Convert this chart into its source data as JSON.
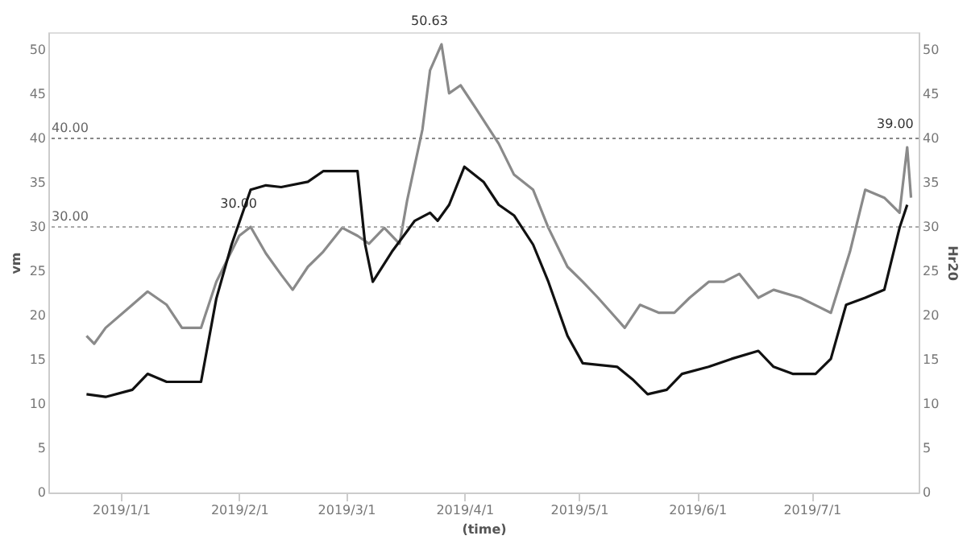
{
  "chart_data": {
    "type": "line",
    "xlabel": "(time)",
    "ylabel": "vm",
    "y2label": "Hr20",
    "xlim": [
      "2018-12-13",
      "2019-07-29"
    ],
    "xticks": [
      {
        "value": "2019-01-01",
        "label": "2019/1/1"
      },
      {
        "value": "2019-02-01",
        "label": "2019/2/1"
      },
      {
        "value": "2019-03-01",
        "label": "2019/3/1"
      },
      {
        "value": "2019-04-01",
        "label": "2019/4/1"
      },
      {
        "value": "2019-05-01",
        "label": "2019/5/1"
      },
      {
        "value": "2019-06-01",
        "label": "2019/6/1"
      },
      {
        "value": "2019-07-01",
        "label": "2019/7/1"
      }
    ],
    "ylim": [
      0,
      52
    ],
    "yticks": [
      0,
      5,
      10,
      15,
      20,
      25,
      30,
      35,
      40,
      45,
      50
    ],
    "y2lim": [
      0,
      52
    ],
    "y2ticks": [
      0,
      5,
      10,
      15,
      20,
      25,
      30,
      35,
      40,
      45,
      50
    ],
    "grid": false,
    "legend": false,
    "marker": "none",
    "line_style": "solid",
    "series": [
      {
        "color": "#8a8a8a",
        "x": [
          "2018-12-23",
          "2018-12-25",
          "2018-12-28",
          "2019-01-04",
          "2019-01-08",
          "2019-01-13",
          "2019-01-17",
          "2019-01-22",
          "2019-01-26",
          "2019-02-01",
          "2019-02-04",
          "2019-02-08",
          "2019-02-12",
          "2019-02-15",
          "2019-02-19",
          "2019-02-23",
          "2019-02-28",
          "2019-03-04",
          "2019-03-07",
          "2019-03-11",
          "2019-03-15",
          "2019-03-17",
          "2019-03-21",
          "2019-03-23",
          "2019-03-26",
          "2019-03-28",
          "2019-03-31",
          "2019-04-04",
          "2019-04-10",
          "2019-04-14",
          "2019-04-19",
          "2019-04-23",
          "2019-04-28",
          "2019-05-02",
          "2019-05-06",
          "2019-05-13",
          "2019-05-17",
          "2019-05-22",
          "2019-05-26",
          "2019-05-30",
          "2019-06-04",
          "2019-06-08",
          "2019-06-12",
          "2019-06-17",
          "2019-06-21",
          "2019-06-28",
          "2019-07-06",
          "2019-07-11",
          "2019-07-15",
          "2019-07-20",
          "2019-07-24",
          "2019-07-26",
          "2019-07-27"
        ],
        "values": [
          17.7,
          16.8,
          18.6,
          21.2,
          22.7,
          21.2,
          18.6,
          18.6,
          23.8,
          29,
          30,
          27,
          24.6,
          22.9,
          25.5,
          27.2,
          29.9,
          29,
          28.1,
          29.9,
          28.1,
          33,
          41,
          47.7,
          50.63,
          45.1,
          46,
          43.4,
          39.4,
          35.9,
          34.2,
          29.9,
          25.5,
          23.8,
          22,
          18.6,
          21.2,
          20.3,
          20.3,
          22,
          23.8,
          23.8,
          24.7,
          22,
          22.9,
          22,
          20.3,
          27.2,
          34.2,
          33.3,
          31.6,
          39,
          33.3
        ]
      },
      {
        "color": "#111111",
        "axis": "y2",
        "x": [
          "2018-12-23",
          "2018-12-28",
          "2019-01-04",
          "2019-01-08",
          "2019-01-13",
          "2019-01-22",
          "2019-01-26",
          "2019-01-30",
          "2019-02-04",
          "2019-02-08",
          "2019-02-12",
          "2019-02-19",
          "2019-02-23",
          "2019-03-02",
          "2019-03-04",
          "2019-03-06",
          "2019-03-08",
          "2019-03-13",
          "2019-03-19",
          "2019-03-23",
          "2019-03-25",
          "2019-03-28",
          "2019-04-01",
          "2019-04-06",
          "2019-04-10",
          "2019-04-14",
          "2019-04-19",
          "2019-04-23",
          "2019-04-28",
          "2019-05-02",
          "2019-05-11",
          "2019-05-15",
          "2019-05-19",
          "2019-05-24",
          "2019-05-28",
          "2019-06-04",
          "2019-06-10",
          "2019-06-17",
          "2019-06-21",
          "2019-06-26",
          "2019-07-02",
          "2019-07-06",
          "2019-07-10",
          "2019-07-15",
          "2019-07-20",
          "2019-07-24",
          "2019-07-26"
        ],
        "values": [
          11.1,
          10.8,
          11.6,
          13.4,
          12.5,
          12.5,
          21.9,
          28.0,
          34.2,
          34.7,
          34.5,
          35.1,
          36.3,
          36.3,
          36.3,
          28.0,
          23.8,
          27.2,
          30.7,
          31.6,
          30.7,
          32.5,
          36.8,
          35.1,
          32.5,
          31.3,
          28.0,
          23.8,
          17.7,
          14.6,
          14.2,
          12.8,
          11.1,
          11.6,
          13.4,
          14.2,
          15.1,
          16.0,
          14.2,
          13.4,
          13.4,
          15.1,
          21.2,
          22.0,
          22.9,
          29.9,
          32.5
        ]
      }
    ],
    "ref_lines": [
      {
        "axis": "y",
        "value": 40,
        "label": "40.00",
        "color": "#888888",
        "line_style": "dotted"
      },
      {
        "axis": "y",
        "value": 30,
        "label": "30.00",
        "color": "#aaaaaa",
        "line_style": "dotted"
      }
    ],
    "annotations": [
      {
        "text": "50.63",
        "x": "2019-03-26",
        "y": 50.63
      },
      {
        "text": "30.00",
        "x": "2019-02-04",
        "y": 30
      },
      {
        "text": "39.00",
        "x": "2019-07-26",
        "y": 39
      }
    ]
  }
}
